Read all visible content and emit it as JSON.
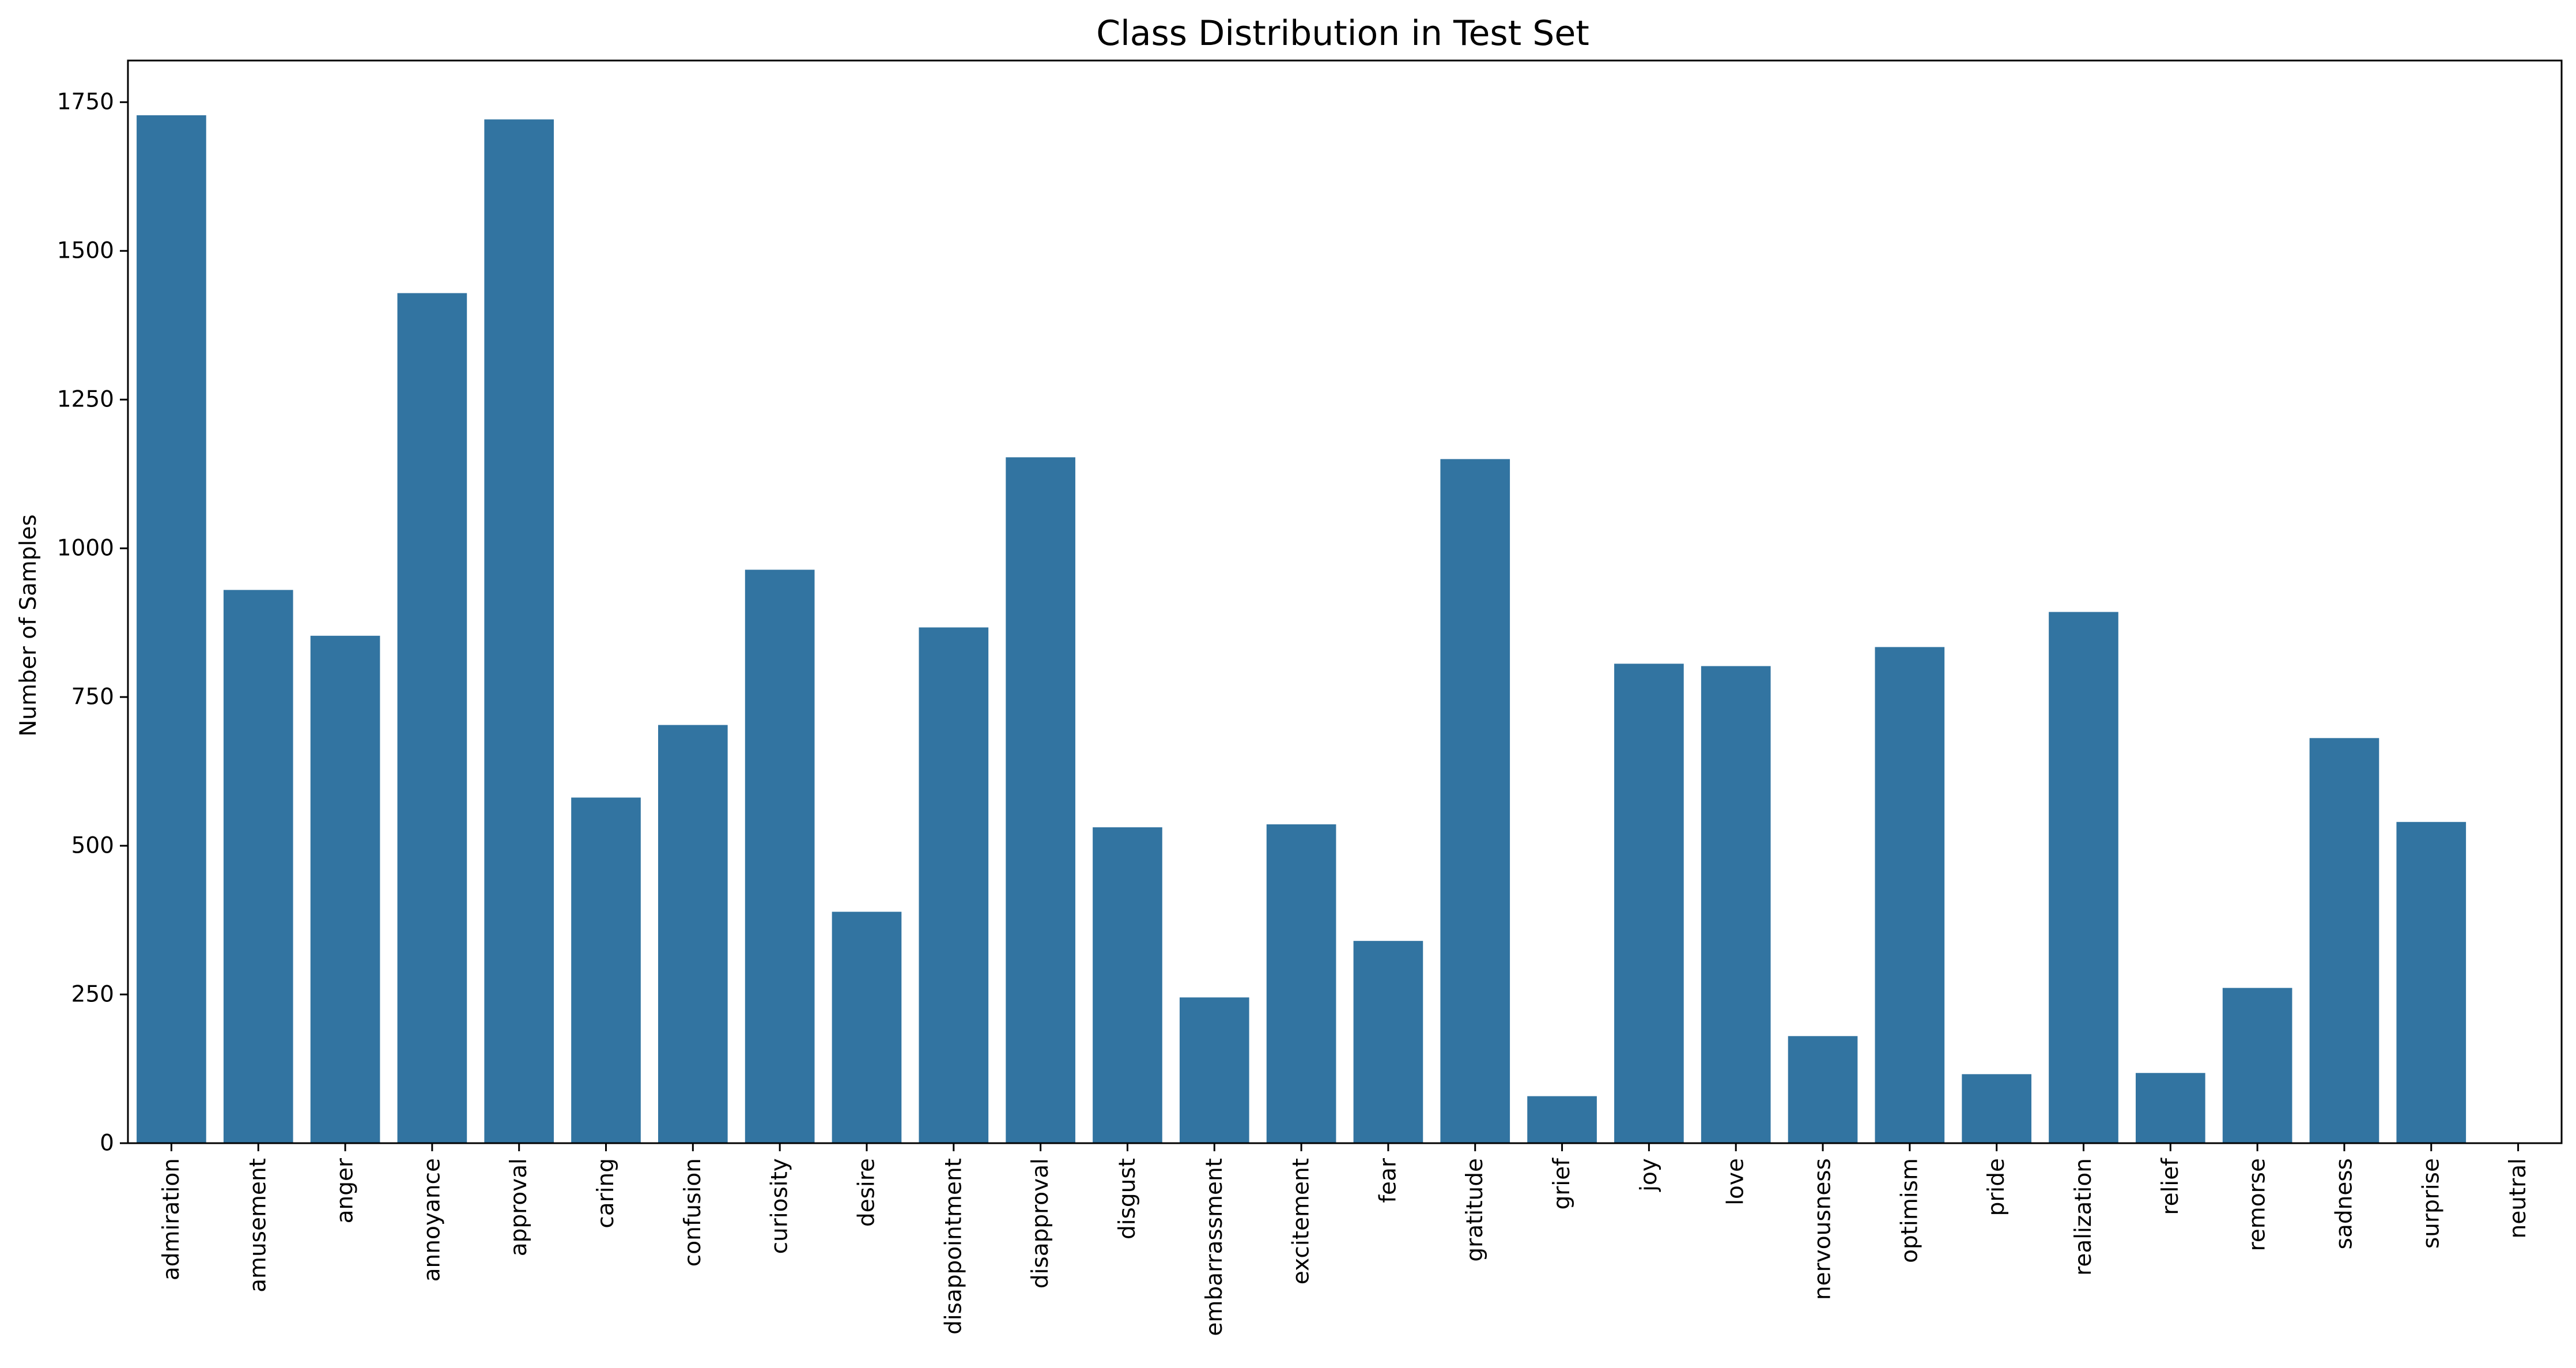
{
  "chart_data": {
    "type": "bar",
    "title": "Class Distribution in Test Set",
    "xlabel": "",
    "ylabel": "Number of Samples",
    "ylim": [
      0,
      1820
    ],
    "yticks": [
      0,
      250,
      500,
      750,
      1000,
      1250,
      1500,
      1750
    ],
    "grid": false,
    "bar_color": "#3274a1",
    "categories": [
      "admiration",
      "amusement",
      "anger",
      "annoyance",
      "approval",
      "caring",
      "confusion",
      "curiosity",
      "desire",
      "disappointment",
      "disapproval",
      "disgust",
      "embarrassment",
      "excitement",
      "fear",
      "gratitude",
      "grief",
      "joy",
      "love",
      "nervousness",
      "optimism",
      "pride",
      "realization",
      "relief",
      "remorse",
      "sadness",
      "surprise",
      "neutral"
    ],
    "values": [
      1728,
      930,
      853,
      1429,
      1721,
      581,
      703,
      964,
      389,
      867,
      1153,
      531,
      245,
      536,
      340,
      1150,
      79,
      806,
      802,
      180,
      834,
      116,
      893,
      118,
      261,
      681,
      540,
      0
    ]
  }
}
